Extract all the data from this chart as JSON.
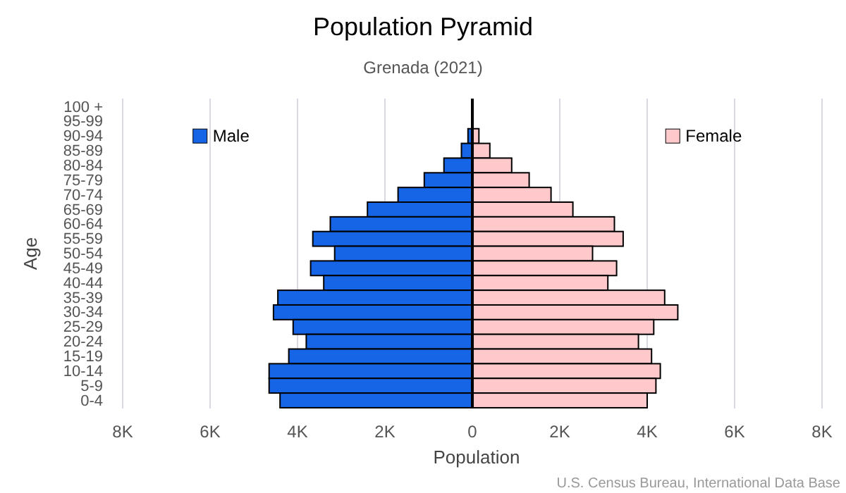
{
  "chart_data": {
    "type": "bar",
    "orientation": "horizontal",
    "stacked": true,
    "title": "Population Pyramid",
    "subtitle": "Grenada (2021)",
    "xlabel": "Population",
    "ylabel": "Age",
    "categories": [
      "100 +",
      "95-99",
      "90-94",
      "85-89",
      "80-84",
      "75-79",
      "70-74",
      "65-69",
      "60-64",
      "55-59",
      "50-54",
      "45-49",
      "40-44",
      "35-39",
      "30-34",
      "25-29",
      "20-24",
      "15-19",
      "10-14",
      "5-9",
      "0-4"
    ],
    "series": [
      {
        "name": "Male",
        "color": "#1565e6",
        "values": [
          -10,
          null,
          -100,
          -250,
          -650,
          -1100,
          -1700,
          -2400,
          -3250,
          -3650,
          -3150,
          -3700,
          -3400,
          -4450,
          -4550,
          -4100,
          -3800,
          -4200,
          -4650,
          -4650,
          -4400
        ]
      },
      {
        "name": "Female",
        "color": "#ffc9cc",
        "values": [
          10,
          null,
          150,
          400,
          900,
          1300,
          1800,
          2300,
          3250,
          3450,
          2750,
          3300,
          3100,
          4400,
          4700,
          4150,
          3800,
          4100,
          4300,
          4200,
          4000
        ]
      }
    ],
    "xlim": [
      -8000,
      8000
    ],
    "xticks": [
      {
        "value": -8000,
        "label": "8K"
      },
      {
        "value": -6000,
        "label": "6K"
      },
      {
        "value": -4000,
        "label": "4K"
      },
      {
        "value": -2000,
        "label": "2K"
      },
      0,
      {
        "value": 2000,
        "label": "2K"
      },
      {
        "value": 4000,
        "label": "4K"
      },
      {
        "value": 6000,
        "label": "6K"
      },
      {
        "value": 8000,
        "label": "8K"
      }
    ],
    "grid": "x",
    "legend": "top",
    "annotations": [
      "U.S. Census Bureau, International Data Base"
    ]
  }
}
